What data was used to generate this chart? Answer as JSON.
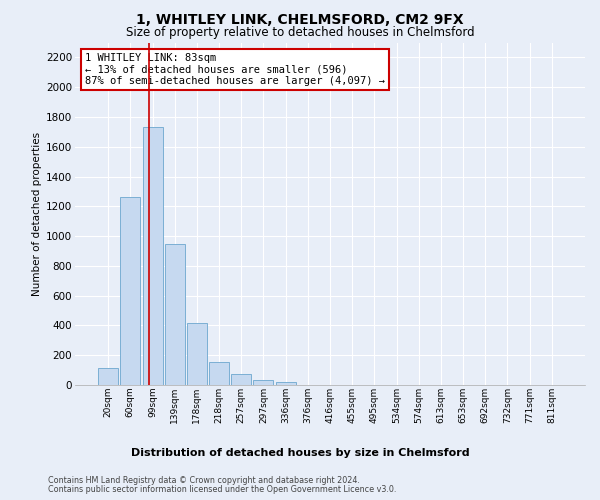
{
  "title": "1, WHITLEY LINK, CHELMSFORD, CM2 9FX",
  "subtitle": "Size of property relative to detached houses in Chelmsford",
  "xlabel_bottom": "Distribution of detached houses by size in Chelmsford",
  "ylabel": "Number of detached properties",
  "bar_labels": [
    "20sqm",
    "60sqm",
    "99sqm",
    "139sqm",
    "178sqm",
    "218sqm",
    "257sqm",
    "297sqm",
    "336sqm",
    "376sqm",
    "416sqm",
    "455sqm",
    "495sqm",
    "534sqm",
    "574sqm",
    "613sqm",
    "653sqm",
    "692sqm",
    "732sqm",
    "771sqm",
    "811sqm"
  ],
  "bar_values": [
    115,
    1260,
    1730,
    950,
    415,
    155,
    75,
    35,
    20,
    0,
    0,
    0,
    0,
    0,
    0,
    0,
    0,
    0,
    0,
    0,
    0
  ],
  "bar_color": "#c6d9f0",
  "bar_edge_color": "#7bafd4",
  "ylim": [
    0,
    2300
  ],
  "yticks": [
    0,
    200,
    400,
    600,
    800,
    1000,
    1200,
    1400,
    1600,
    1800,
    2000,
    2200
  ],
  "property_line_x": 1.82,
  "vline_color": "#cc0000",
  "annotation_text": "1 WHITLEY LINK: 83sqm\n← 13% of detached houses are smaller (596)\n87% of semi-detached houses are larger (4,097) →",
  "annotation_box_color": "#ffffff",
  "annotation_box_edge": "#cc0000",
  "footer1": "Contains HM Land Registry data © Crown copyright and database right 2024.",
  "footer2": "Contains public sector information licensed under the Open Government Licence v3.0.",
  "bg_color": "#e8eef8",
  "grid_color": "#ffffff"
}
